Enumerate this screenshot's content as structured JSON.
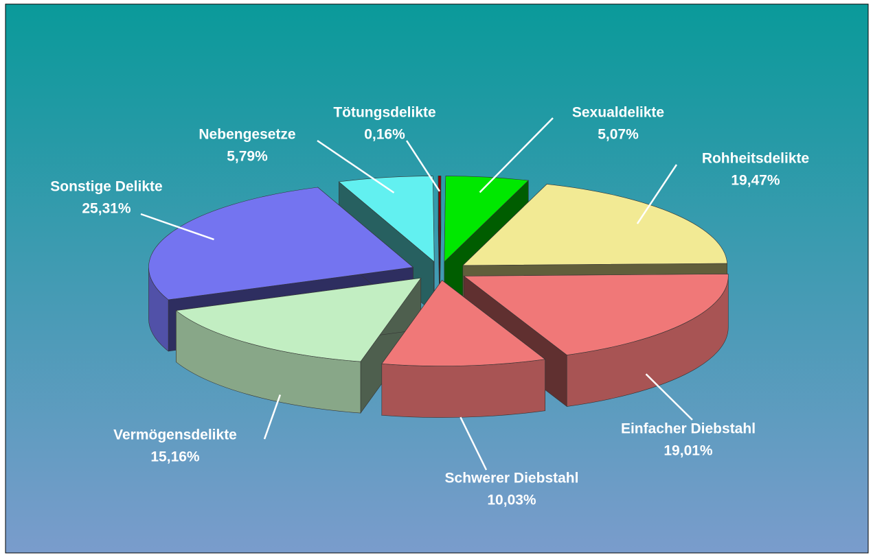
{
  "chart_data": {
    "type": "pie3d",
    "categories": [
      "Tötungsdelikte",
      "Sexualdelikte",
      "Rohheitsdelikte",
      "Einfacher Diebstahl",
      "Schwerer Diebstahl",
      "Vermögensdelikte",
      "Sonstige Delikte",
      "Nebengesetze"
    ],
    "values": [
      0.16,
      5.07,
      19.47,
      19.01,
      10.03,
      15.16,
      25.31,
      5.79
    ],
    "value_labels": [
      "0,16%",
      "5,07%",
      "19,47%",
      "19,01%",
      "10,03%",
      "15,16%",
      "25,31%",
      "5,79%"
    ],
    "colors": [
      "#8b0000",
      "#00e800",
      "#f2ea94",
      "#f07878",
      "#f07878",
      "#c2eec2",
      "#7474f0",
      "#62f0f0"
    ]
  }
}
